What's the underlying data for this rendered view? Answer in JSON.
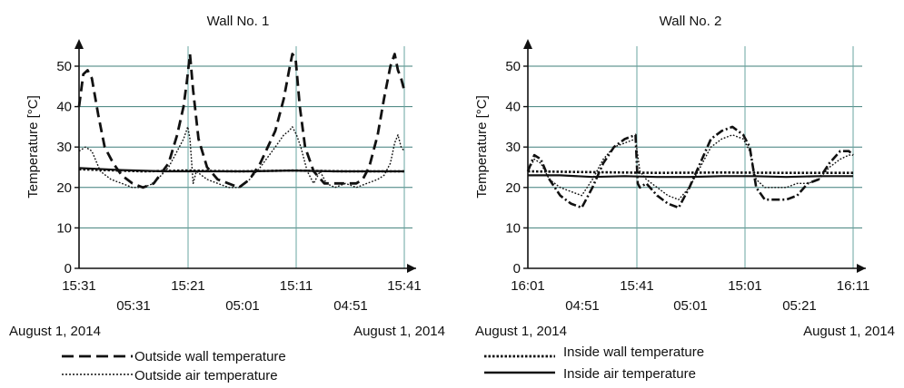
{
  "chart_data": [
    {
      "type": "line",
      "title": "Wall No. 1",
      "ylabel": "Temperature [°C]",
      "ylim": [
        0,
        55
      ],
      "yticks": [
        "0",
        "10",
        "20",
        "30",
        "40",
        "50"
      ],
      "xticks_top": [
        "15:31",
        "15:21",
        "15:11",
        "15:41"
      ],
      "xticks_bottom": [
        "05:31",
        "05:01",
        "04:51"
      ],
      "date_left": "August 1, 2014",
      "date_right": "August 1, 2014",
      "grid": true,
      "series": [
        {
          "name": "Outside wall temperature",
          "style": "dashed",
          "x": [
            0,
            0.2,
            0.4,
            0.6,
            0.9,
            1.2,
            1.6,
            2.0,
            2.5,
            3.0,
            3.5,
            4.2,
            4.6,
            4.9,
            5.05,
            5.2,
            5.35,
            5.6,
            6.0,
            6.5,
            7.0,
            7.5,
            8.0,
            8.5,
            9.2,
            9.6,
            9.85,
            10.0,
            10.15,
            10.35,
            10.6,
            11.0,
            11.5,
            12.0,
            12.5,
            13.0,
            13.3,
            13.6,
            14.0,
            14.3,
            14.6,
            14.8,
            14.95,
            15.1,
            15.25
          ],
          "y": [
            40,
            48,
            49,
            47,
            38,
            30,
            26,
            23,
            21,
            20,
            21,
            26,
            33,
            40,
            46,
            53,
            44,
            32,
            25,
            22,
            21,
            20,
            22,
            26,
            34,
            42,
            49,
            53,
            52,
            40,
            30,
            24,
            21,
            21,
            21,
            21,
            22,
            25,
            33,
            42,
            50,
            53,
            49,
            47,
            44
          ]
        },
        {
          "name": "Outside air temperature",
          "style": "dotted",
          "x": [
            0,
            0.3,
            0.6,
            1.0,
            1.5,
            2.0,
            2.5,
            3.0,
            3.5,
            4.2,
            4.6,
            4.9,
            5.1,
            5.2,
            5.35,
            5.5,
            6.0,
            6.5,
            7.0,
            7.5,
            8.0,
            8.5,
            9.2,
            9.6,
            9.85,
            10.0,
            10.2,
            10.4,
            10.7,
            11.0,
            11.3,
            11.6,
            12.0,
            12.5,
            13.0,
            13.5,
            14.0,
            14.3,
            14.6,
            14.8,
            14.95,
            15.1,
            15.25
          ],
          "y": [
            29,
            30,
            29,
            24,
            22,
            21,
            20,
            20,
            21,
            25,
            29,
            32,
            35,
            32,
            21,
            24,
            22,
            21,
            20,
            20,
            22,
            25,
            30,
            33,
            34,
            35,
            33,
            30,
            24,
            21,
            24,
            21,
            20,
            21,
            20,
            21,
            22,
            23,
            26,
            31,
            33,
            30,
            29
          ]
        },
        {
          "name": "Inside wall temperature",
          "style": "dotted-fine",
          "x": [
            0,
            3,
            5,
            7.5,
            10,
            12.5,
            15.25
          ],
          "y": [
            24.5,
            24,
            24.2,
            24,
            24.2,
            24,
            24
          ]
        },
        {
          "name": "Inside air temperature",
          "style": "solid",
          "x": [
            0,
            2,
            4,
            6,
            8,
            10,
            12,
            14,
            15.25
          ],
          "y": [
            24.8,
            24.3,
            24.0,
            24.0,
            24.0,
            24.2,
            24.0,
            24.0,
            24.0
          ]
        }
      ]
    },
    {
      "type": "line",
      "title": "Wall No. 2",
      "ylabel": "Temperature [°C]",
      "ylim": [
        0,
        55
      ],
      "yticks": [
        "0",
        "10",
        "20",
        "30",
        "40",
        "50"
      ],
      "xticks_top": [
        "16:01",
        "15:41",
        "15:01",
        "16:11"
      ],
      "xticks_bottom": [
        "04:51",
        "05:01",
        "05:21"
      ],
      "date_left": "August 1, 2014",
      "date_right": "August 1, 2014",
      "grid": true,
      "series": [
        {
          "name": "Outside wall temperature",
          "style": "dashdot",
          "x": [
            0,
            0.3,
            0.6,
            1.0,
            1.5,
            2.0,
            2.5,
            3.0,
            3.5,
            4.0,
            4.5,
            5.0,
            5.1,
            5.2,
            5.5,
            6.0,
            6.5,
            7.0,
            7.5,
            8.0,
            8.5,
            9.0,
            9.5,
            10.0,
            10.3,
            10.6,
            11.0,
            11.5,
            12.0,
            12.5,
            13.0,
            13.5,
            14.0,
            14.5,
            14.9,
            15.1
          ],
          "y": [
            24,
            28,
            27,
            22,
            18,
            16,
            15,
            20,
            26,
            30,
            32,
            33,
            21,
            20,
            21,
            18,
            16,
            15,
            20,
            26,
            32,
            34,
            35,
            33,
            30,
            20,
            17,
            17,
            17,
            18,
            21,
            22,
            26,
            29,
            29,
            28
          ]
        },
        {
          "name": "Outside air temperature",
          "style": "dotted",
          "x": [
            0,
            0.3,
            0.6,
            1.0,
            1.5,
            2.0,
            2.5,
            3.0,
            3.5,
            4.0,
            4.5,
            5.0,
            5.2,
            5.5,
            6.0,
            6.5,
            7.0,
            7.5,
            8.0,
            8.5,
            9.0,
            9.5,
            10.0,
            10.3,
            10.6,
            11.0,
            11.5,
            12.0,
            12.5,
            13.0,
            13.5,
            14.0,
            14.5,
            14.9,
            15.1
          ],
          "y": [
            24,
            27,
            26,
            22,
            20,
            19,
            18,
            22,
            27,
            30,
            31,
            32,
            24,
            22,
            20,
            18,
            17,
            20,
            25,
            30,
            32,
            33,
            32,
            29,
            22,
            20,
            20,
            20,
            21,
            21,
            22,
            25,
            27,
            28,
            28
          ]
        },
        {
          "name": "Inside wall temperature",
          "style": "dotted-fine",
          "x": [
            0,
            3,
            6,
            9,
            12,
            15.1
          ],
          "y": [
            24,
            23.8,
            23.6,
            23.7,
            23.6,
            23.6
          ]
        },
        {
          "name": "Inside air temperature",
          "style": "solid",
          "x": [
            0,
            1.5,
            3,
            4.5,
            6,
            7.5,
            9,
            10.5,
            12,
            13.5,
            15.1
          ],
          "y": [
            23,
            23,
            22.6,
            22.8,
            22.6,
            22.6,
            22.8,
            22.8,
            22.6,
            22.8,
            22.8
          ]
        }
      ]
    }
  ],
  "legend": {
    "left": [
      "Outside wall temperature",
      "Outside air temperature"
    ],
    "right": [
      "Inside wall temperature",
      "Inside air temperature"
    ]
  }
}
